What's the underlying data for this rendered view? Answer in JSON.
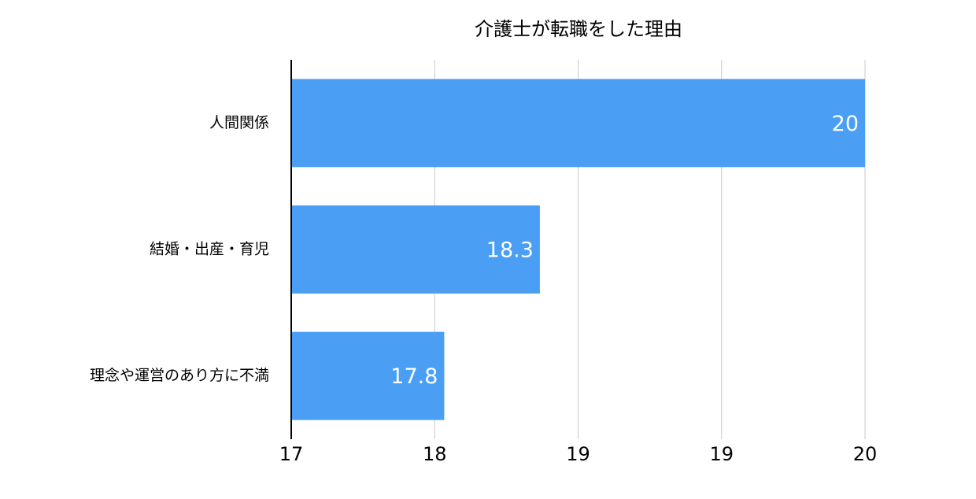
{
  "chart_data": {
    "type": "bar",
    "orientation": "horizontal",
    "title": "介護士が転職をした理由",
    "categories": [
      "人間関係",
      "結婚・出産・育児",
      "理念や運営のあり方に不満"
    ],
    "values": [
      20,
      18.3,
      17.8
    ],
    "color": "#4a9ff5",
    "xlim": [
      17,
      20
    ],
    "xticks": [
      17,
      {
        "value": 17.75,
        "label": "18"
      },
      {
        "value": 18.5,
        "label": "19"
      },
      {
        "value": 19.25,
        "label": "19"
      },
      20
    ],
    "grid": true
  }
}
